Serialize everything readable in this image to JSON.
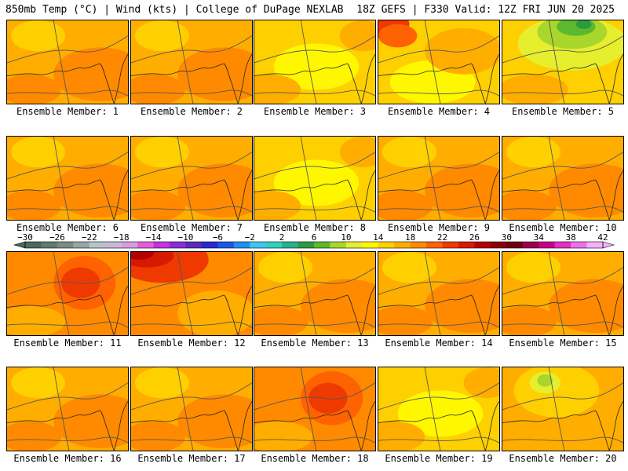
{
  "header": {
    "left": "850mb Temp (°C) | Wind (kts) | College of DuPage NEXLAB",
    "right": "18Z GEFS | F330 Valid: 12Z FRI JUN 20 2025"
  },
  "colorbar": {
    "ticks": [
      "−30",
      "−26",
      "−22",
      "−18",
      "−14",
      "−10",
      "−6",
      "−2",
      "2",
      "6",
      "10",
      "14",
      "18",
      "22",
      "26",
      "30",
      "34",
      "38",
      "42"
    ],
    "bins": [
      "#4a6a5a",
      "#627a6c",
      "#7b8c82",
      "#95a7a4",
      "#b8c3cc",
      "#c6b8d6",
      "#d79ce0",
      "#e45ed8",
      "#c234e0",
      "#8a2fd2",
      "#5a2ab8",
      "#2a2ad0",
      "#1c56e6",
      "#1f90ee",
      "#3fc6ee",
      "#2fd0c0",
      "#2cb08c",
      "#2c9a40",
      "#5cb82c",
      "#a8d62a",
      "#e6ee2e",
      "#fff700",
      "#ffd000",
      "#ffae00",
      "#ff8a00",
      "#ff6200",
      "#ee3a00",
      "#d61a00",
      "#b40000",
      "#8a0000",
      "#700010",
      "#9a0050",
      "#c8008a",
      "#e230c0",
      "#f070e8",
      "#f8b0f4"
    ]
  },
  "panels": [
    {
      "label": "Ensemble Member: 1",
      "palette": "warm"
    },
    {
      "label": "Ensemble Member: 2",
      "palette": "warm"
    },
    {
      "label": "Ensemble Member: 3",
      "palette": "yellow"
    },
    {
      "label": "Ensemble Member: 4",
      "palette": "yellow-red"
    },
    {
      "label": "Ensemble Member: 5",
      "palette": "green"
    },
    {
      "label": "Ensemble Member: 6",
      "palette": "warm"
    },
    {
      "label": "Ensemble Member: 7",
      "palette": "warm"
    },
    {
      "label": "Ensemble Member: 8",
      "palette": "yellow"
    },
    {
      "label": "Ensemble Member: 9",
      "palette": "warm"
    },
    {
      "label": "Ensemble Member: 10",
      "palette": "warm"
    },
    {
      "label": "Ensemble Member: 11",
      "palette": "hot"
    },
    {
      "label": "Ensemble Member: 12",
      "palette": "hot-nw"
    },
    {
      "label": "Ensemble Member: 13",
      "palette": "warm"
    },
    {
      "label": "Ensemble Member: 14",
      "palette": "warm"
    },
    {
      "label": "Ensemble Member: 15",
      "palette": "warm"
    },
    {
      "label": "Ensemble Member: 16",
      "palette": "warm"
    },
    {
      "label": "Ensemble Member: 17",
      "palette": "warm"
    },
    {
      "label": "Ensemble Member: 18",
      "palette": "hot"
    },
    {
      "label": "Ensemble Member: 19",
      "palette": "yellow"
    },
    {
      "label": "Ensemble Member: 20",
      "palette": "green-small"
    }
  ]
}
